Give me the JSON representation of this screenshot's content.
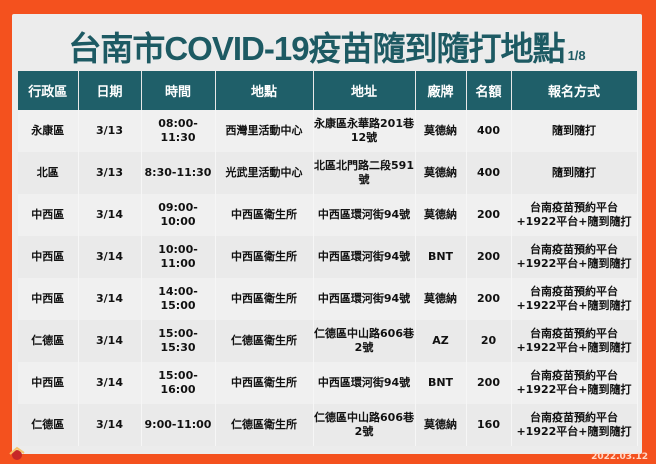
{
  "title": "台南市COVID-19疫苗隨到隨打地點",
  "page": "1/8",
  "headers": [
    "行政區",
    "日期",
    "時間",
    "地點",
    "地址",
    "廠牌",
    "名額",
    "報名方式"
  ],
  "rows": [
    [
      "永康區",
      "3/13",
      "08:00-11:30",
      "西灣里活動中心",
      "永康區永華路201巷12號",
      "莫德納",
      "400",
      "隨到隨打"
    ],
    [
      "北區",
      "3/13",
      "8:30-11:30",
      "光武里活動中心",
      "北區北門路二段591號",
      "莫德納",
      "400",
      "隨到隨打"
    ],
    [
      "中西區",
      "3/14",
      "09:00-10:00",
      "中西區衛生所",
      "中西區環河街94號",
      "莫德納",
      "200",
      "台南疫苗預約平台+1922平台+隨到隨打"
    ],
    [
      "中西區",
      "3/14",
      "10:00-11:00",
      "中西區衛生所",
      "中西區環河街94號",
      "BNT",
      "200",
      "台南疫苗預約平台+1922平台+隨到隨打"
    ],
    [
      "中西區",
      "3/14",
      "14:00-15:00",
      "中西區衛生所",
      "中西區環河街94號",
      "莫德納",
      "200",
      "台南疫苗預約平台+1922平台+隨到隨打"
    ],
    [
      "仁德區",
      "3/14",
      "15:00-15:30",
      "仁德區衛生所",
      "仁德區中山路606巷2號",
      "AZ",
      "20",
      "台南疫苗預約平台+1922平台+隨到隨打"
    ],
    [
      "中西區",
      "3/14",
      "15:00-16:00",
      "中西區衛生所",
      "中西區環河街94號",
      "BNT",
      "200",
      "台南疫苗預約平台+1922平台+隨到隨打"
    ],
    [
      "仁德區",
      "3/14",
      "9:00-11:00",
      "仁德區衛生所",
      "仁德區中山路606巷2號",
      "莫德納",
      "160",
      "台南疫苗預約平台+1922平台+隨到隨打"
    ]
  ],
  "date_stamp": "2022.03.12",
  "colors": {
    "border": "#f4511e",
    "header": "#1f5f69",
    "title": "#1d5a63"
  }
}
